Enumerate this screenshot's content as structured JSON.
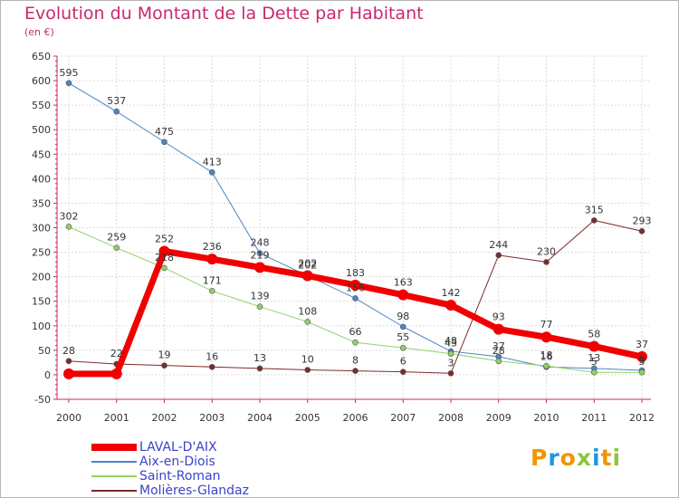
{
  "title": "Evolution du Montant de la Dette par Habitant",
  "subtitle": "(en €)",
  "logo": {
    "text": "Proxiti",
    "colors": [
      "#f29400",
      "#1e9ad6",
      "#8dc63f"
    ]
  },
  "chart_data": {
    "type": "line",
    "title": "Evolution du Montant de la Dette par Habitant",
    "subtitle": "(en €)",
    "xlabel": "",
    "ylabel": "",
    "x": [
      "2000",
      "2001",
      "2002",
      "2003",
      "2004",
      "2005",
      "2006",
      "2007",
      "2008",
      "2009",
      "2010",
      "2011",
      "2012"
    ],
    "ylim": [
      -50,
      650
    ],
    "yticks": [
      -50,
      0,
      50,
      100,
      150,
      200,
      250,
      300,
      350,
      400,
      450,
      500,
      550,
      600,
      650
    ],
    "ytick_labels": [
      "-50",
      "0",
      "50",
      "100",
      "150",
      "200",
      "250",
      "300",
      "350",
      "400",
      "450",
      "500",
      "550",
      "600",
      "650"
    ],
    "grid": true,
    "legend": "bottom-left",
    "series": [
      {
        "name": "Aix-en-Diois",
        "color": "#4a86c5",
        "width": 1,
        "values": [
          595,
          537,
          475,
          413,
          248,
          202,
          156,
          98,
          48,
          37,
          16,
          13,
          9
        ],
        "labels": [
          "595",
          "537",
          "475",
          "413",
          "248",
          "202",
          "156",
          "98",
          "48",
          "37",
          "16",
          "13",
          "9"
        ]
      },
      {
        "name": "Saint-Roman",
        "color": "#8fd264",
        "width": 1,
        "values": [
          302,
          259,
          218,
          171,
          139,
          108,
          66,
          55,
          43,
          28,
          18,
          5,
          5
        ],
        "labels": [
          "302",
          "259",
          "218",
          "171",
          "139",
          "108",
          "66",
          "55",
          "43",
          "28",
          "18",
          "5",
          "5"
        ]
      },
      {
        "name": "Molières-Glandaz",
        "color": "#7b2b2b",
        "width": 1,
        "values": [
          28,
          22,
          19,
          16,
          13,
          10,
          8,
          6,
          3,
          244,
          230,
          315,
          293
        ],
        "labels": [
          "28",
          "22",
          "19",
          "16",
          "13",
          "10",
          "8",
          "6",
          "3",
          "244",
          "230",
          "315",
          "293"
        ]
      },
      {
        "name": "LAVAL-D'AIX",
        "color": "#f00000",
        "width": 7,
        "values": [
          2,
          2,
          252,
          236,
          219,
          202,
          183,
          163,
          142,
          93,
          77,
          58,
          37
        ],
        "labels": [
          "",
          "",
          "252",
          "236",
          "219",
          "202",
          "183",
          "163",
          "142",
          "93",
          "77",
          "58",
          "37"
        ]
      }
    ]
  }
}
